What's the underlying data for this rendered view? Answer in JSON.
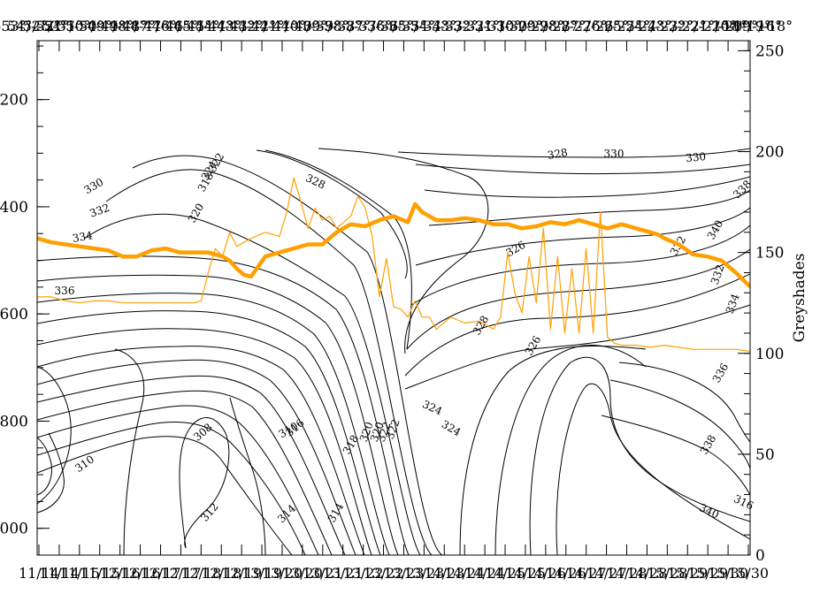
{
  "chart_data": {
    "type": "line",
    "title": "",
    "colors": {
      "contour": "#000000",
      "series": "#ffa000",
      "frame": "#000000"
    },
    "x_axis_bottom": {
      "label": "",
      "ticks": [
        "11/14",
        "11/15",
        "12/16",
        "12/17",
        "12/18",
        "12/19",
        "13/20",
        "13/21",
        "13/22",
        "13/23",
        "14/24",
        "14/25",
        "14/26",
        "14/27",
        "14/28",
        "15/29",
        "15/30"
      ],
      "tick_labels": [
        "11/14",
        "11/14",
        "11/15",
        "11/15",
        "12/16",
        "12/16",
        "12/17",
        "12/17",
        "12/18",
        "12/18",
        "12/19",
        "13/19",
        "13/20",
        "13/20",
        "13/21",
        "13/21",
        "13/22",
        "13/22",
        "13/23",
        "13/23",
        "14/23",
        "14/24",
        "14/24",
        "14/25",
        "14/25",
        "14/26",
        "14/26",
        "14/27",
        "14/27",
        "14/28",
        "14/28",
        "15/28",
        "15/29",
        "15/29",
        "15/30",
        "15/30"
      ]
    },
    "x_axis_top": {
      "tick_labels": [
        "54°/-53°",
        "-53°/-52°",
        "-52°/-51°",
        "-51°/-50°",
        "-50°/-49°",
        "-49°/-48°",
        "-48°/-47°",
        "-47°/-46°",
        "-46°/-45°",
        "-45°/-44°",
        "-44°/-43°",
        "-43°/-42°",
        "-42°/-41°",
        "-41°/-40°",
        "-40°/-39°",
        "-39°/-38°",
        "-38°/-37°",
        "-37°/-36°",
        "-36°/-35°",
        "-35°/-34°",
        "-34°/-33°",
        "-33°/-32°",
        "-32°/-31°",
        "-31°/-30°",
        "-30°/-29°",
        "-29°/-28°",
        "-28°/-27°",
        "-27°/-26°",
        "-26°/-25°",
        "-25°/-24°",
        "-24°/-23°",
        "-23°/-22°",
        "-22°/-21°",
        "-21°/-20°",
        "-20°/-19°",
        "-19°/-18°",
        "-18°/-16°"
      ],
      "visible_text": "54°/-538°/-37°/-534°/-503°/492°/-49°/-486°/-487°/-486°/-25°/-423°/-422°/-412°/-401°/-39°/-388°/-16°"
    },
    "y_axis_left": {
      "label": "",
      "ticks": [
        200,
        400,
        600,
        800,
        1000
      ],
      "range": [
        1050,
        90
      ],
      "inverted": true
    },
    "y_axis_right": {
      "label": "Greyshades",
      "ticks": [
        0,
        50,
        100,
        150,
        200,
        250
      ],
      "range": [
        0,
        255
      ]
    },
    "contours": {
      "variable": "potential temperature",
      "interval": 2,
      "labels": [
        "308",
        "310",
        "310",
        "312",
        "314",
        "314",
        "316",
        "318",
        "320",
        "320",
        "322",
        "322",
        "324",
        "324",
        "326",
        "326",
        "328",
        "328",
        "330",
        "330",
        "332",
        "332",
        "334",
        "336",
        "338",
        "340",
        "316",
        "318",
        "320",
        "322",
        "324",
        "328",
        "330",
        "332",
        "334",
        "336",
        "338",
        "340"
      ]
    },
    "series": [
      {
        "name": "",
        "color": "#ffa000",
        "width": "thick",
        "x": [
          0,
          0.02,
          0.04,
          0.06,
          0.08,
          0.1,
          0.12,
          0.14,
          0.16,
          0.18,
          0.2,
          0.22,
          0.24,
          0.26,
          0.27,
          0.28,
          0.29,
          0.3,
          0.32,
          0.34,
          0.36,
          0.38,
          0.4,
          0.42,
          0.44,
          0.46,
          0.48,
          0.5,
          0.52,
          0.53,
          0.54,
          0.56,
          0.58,
          0.6,
          0.62,
          0.64,
          0.66,
          0.68,
          0.7,
          0.72,
          0.74,
          0.76,
          0.78,
          0.8,
          0.82,
          0.84,
          0.86,
          0.87,
          0.88,
          0.9,
          0.92,
          0.94,
          0.96,
          0.98,
          1.0
        ],
        "y": [
          157,
          155,
          154,
          153,
          152,
          151,
          148,
          148,
          151,
          152,
          150,
          150,
          150,
          148,
          146,
          142,
          139,
          138,
          148,
          150,
          152,
          154,
          154,
          160,
          164,
          163,
          166,
          168,
          165,
          174,
          170,
          166,
          166,
          167,
          166,
          164,
          164,
          162,
          163,
          165,
          164,
          166,
          164,
          162,
          164,
          162,
          160,
          159,
          157,
          154,
          149,
          148,
          146,
          140,
          133
        ]
      },
      {
        "name": "",
        "color": "#ffa000",
        "width": "thin",
        "x": [
          0,
          0.02,
          0.04,
          0.06,
          0.08,
          0.1,
          0.12,
          0.14,
          0.16,
          0.18,
          0.2,
          0.22,
          0.23,
          0.24,
          0.25,
          0.26,
          0.27,
          0.28,
          0.3,
          0.32,
          0.34,
          0.35,
          0.36,
          0.37,
          0.38,
          0.39,
          0.4,
          0.41,
          0.42,
          0.44,
          0.45,
          0.46,
          0.47,
          0.48,
          0.49,
          0.5,
          0.51,
          0.52,
          0.53,
          0.54,
          0.55,
          0.56,
          0.58,
          0.6,
          0.62,
          0.64,
          0.65,
          0.66,
          0.67,
          0.68,
          0.69,
          0.7,
          0.71,
          0.72,
          0.73,
          0.74,
          0.75,
          0.76,
          0.77,
          0.78,
          0.79,
          0.8,
          0.81,
          0.82,
          0.84,
          0.86,
          0.88,
          0.9,
          0.92,
          0.94,
          0.96,
          0.98,
          1.0
        ],
        "y": [
          128,
          128,
          126,
          125,
          126,
          126,
          125,
          125,
          125,
          125,
          125,
          125,
          126,
          140,
          152,
          148,
          160,
          153,
          157,
          160,
          158,
          170,
          187,
          175,
          162,
          172,
          166,
          168,
          162,
          168,
          178,
          172,
          158,
          128,
          147,
          123,
          122,
          118,
          126,
          118,
          118,
          112,
          118,
          115,
          116,
          112,
          118,
          150,
          130,
          120,
          148,
          125,
          162,
          112,
          148,
          110,
          142,
          110,
          152,
          110,
          170,
          108,
          105,
          104,
          104,
          103,
          104,
          103,
          102,
          102,
          102,
          102,
          101
        ]
      }
    ]
  }
}
